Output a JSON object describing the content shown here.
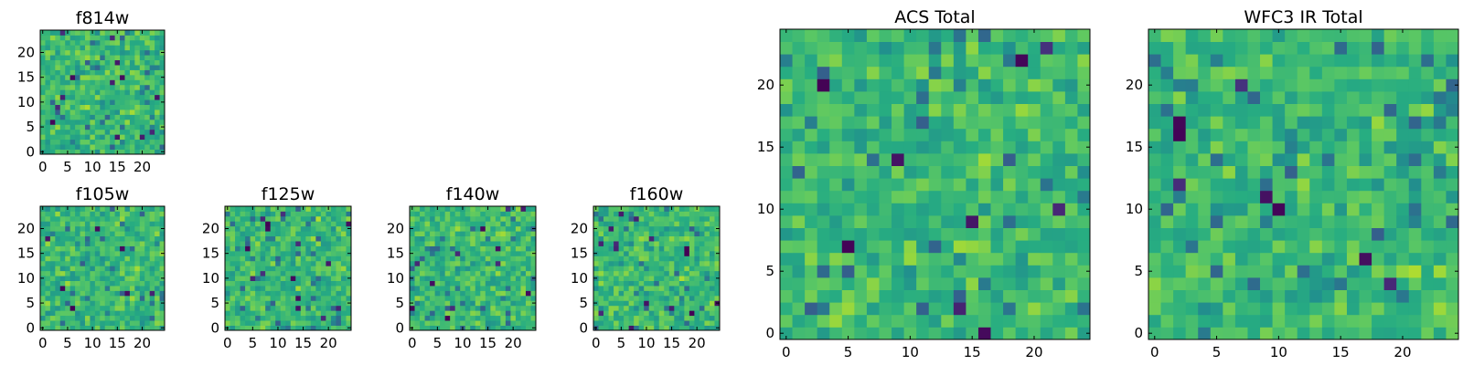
{
  "chart_data": [
    {
      "id": "f814w",
      "type": "heatmap",
      "title": "f814w",
      "grid_size": 25,
      "colormap": "viridis",
      "xticks": [
        0,
        5,
        10,
        15,
        20
      ],
      "yticks": [
        0,
        5,
        10,
        15,
        20
      ],
      "xlim": [
        -0.5,
        24.5
      ],
      "ylim": [
        -0.5,
        24.5
      ],
      "seed": 814
    },
    {
      "id": "f105w",
      "type": "heatmap",
      "title": "f105w",
      "grid_size": 25,
      "colormap": "viridis",
      "xticks": [
        0,
        5,
        10,
        15,
        20
      ],
      "yticks": [
        0,
        5,
        10,
        15,
        20
      ],
      "xlim": [
        -0.5,
        24.5
      ],
      "ylim": [
        -0.5,
        24.5
      ],
      "seed": 105
    },
    {
      "id": "f125w",
      "type": "heatmap",
      "title": "f125w",
      "grid_size": 25,
      "colormap": "viridis",
      "xticks": [
        0,
        5,
        10,
        15,
        20
      ],
      "yticks": [
        0,
        5,
        10,
        15,
        20
      ],
      "xlim": [
        -0.5,
        24.5
      ],
      "ylim": [
        -0.5,
        24.5
      ],
      "seed": 125
    },
    {
      "id": "f140w",
      "type": "heatmap",
      "title": "f140w",
      "grid_size": 25,
      "colormap": "viridis",
      "xticks": [
        0,
        5,
        10,
        15,
        20
      ],
      "yticks": [
        0,
        5,
        10,
        15,
        20
      ],
      "xlim": [
        -0.5,
        24.5
      ],
      "ylim": [
        -0.5,
        24.5
      ],
      "seed": 140
    },
    {
      "id": "f160w",
      "type": "heatmap",
      "title": "f160w",
      "grid_size": 25,
      "colormap": "viridis",
      "xticks": [
        0,
        5,
        10,
        15,
        20
      ],
      "yticks": [
        0,
        5,
        10,
        15,
        20
      ],
      "xlim": [
        -0.5,
        24.5
      ],
      "ylim": [
        -0.5,
        24.5
      ],
      "seed": 160
    },
    {
      "id": "acs-total",
      "type": "heatmap",
      "title": "ACS Total",
      "grid_size": 25,
      "colormap": "viridis",
      "xticks": [
        0,
        5,
        10,
        15,
        20
      ],
      "yticks": [
        0,
        5,
        10,
        15,
        20
      ],
      "xlim": [
        -0.5,
        24.5
      ],
      "ylim": [
        -0.5,
        24.5
      ],
      "seed": 1001
    },
    {
      "id": "wfc3-ir-total",
      "type": "heatmap",
      "title": "WFC3 IR Total",
      "grid_size": 25,
      "colormap": "viridis",
      "xticks": [
        0,
        5,
        10,
        15,
        20
      ],
      "yticks": [
        0,
        5,
        10,
        15,
        20
      ],
      "xlim": [
        -0.5,
        24.5
      ],
      "ylim": [
        -0.5,
        24.5
      ],
      "seed": 2002
    }
  ]
}
